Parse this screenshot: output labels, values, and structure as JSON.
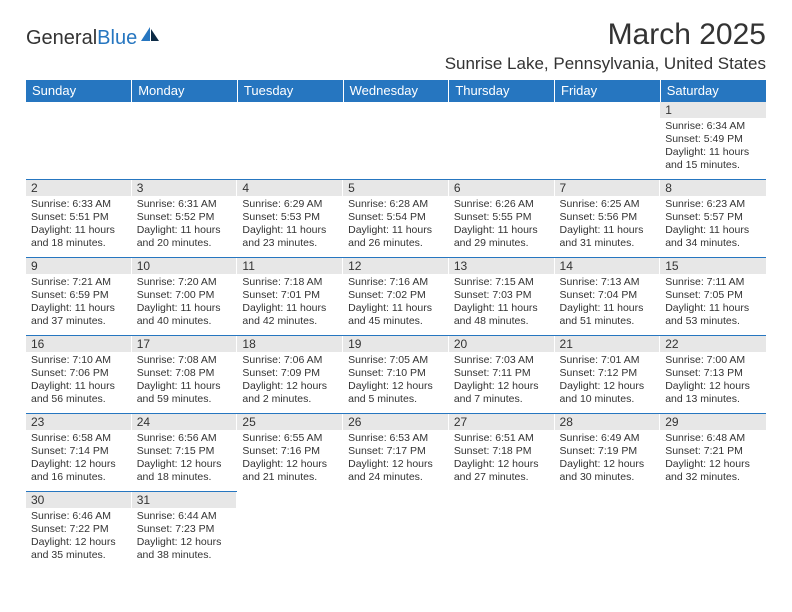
{
  "logo": {
    "text1": "General",
    "text2": "Blue"
  },
  "title": "March 2025",
  "location": "Sunrise Lake, Pennsylvania, United States",
  "header_bg": "#2676c0",
  "header_text_color": "#ffffff",
  "daynum_bg": "#e7e7e7",
  "border_color": "#2676c0",
  "text_color": "#333333",
  "logo_accent": "#2676c0",
  "days": [
    "Sunday",
    "Monday",
    "Tuesday",
    "Wednesday",
    "Thursday",
    "Friday",
    "Saturday"
  ],
  "weeks": [
    [
      null,
      null,
      null,
      null,
      null,
      null,
      {
        "n": "1",
        "sr": "6:34 AM",
        "ss": "5:49 PM",
        "dl": "11 hours and 15 minutes."
      }
    ],
    [
      {
        "n": "2",
        "sr": "6:33 AM",
        "ss": "5:51 PM",
        "dl": "11 hours and 18 minutes."
      },
      {
        "n": "3",
        "sr": "6:31 AM",
        "ss": "5:52 PM",
        "dl": "11 hours and 20 minutes."
      },
      {
        "n": "4",
        "sr": "6:29 AM",
        "ss": "5:53 PM",
        "dl": "11 hours and 23 minutes."
      },
      {
        "n": "5",
        "sr": "6:28 AM",
        "ss": "5:54 PM",
        "dl": "11 hours and 26 minutes."
      },
      {
        "n": "6",
        "sr": "6:26 AM",
        "ss": "5:55 PM",
        "dl": "11 hours and 29 minutes."
      },
      {
        "n": "7",
        "sr": "6:25 AM",
        "ss": "5:56 PM",
        "dl": "11 hours and 31 minutes."
      },
      {
        "n": "8",
        "sr": "6:23 AM",
        "ss": "5:57 PM",
        "dl": "11 hours and 34 minutes."
      }
    ],
    [
      {
        "n": "9",
        "sr": "7:21 AM",
        "ss": "6:59 PM",
        "dl": "11 hours and 37 minutes."
      },
      {
        "n": "10",
        "sr": "7:20 AM",
        "ss": "7:00 PM",
        "dl": "11 hours and 40 minutes."
      },
      {
        "n": "11",
        "sr": "7:18 AM",
        "ss": "7:01 PM",
        "dl": "11 hours and 42 minutes."
      },
      {
        "n": "12",
        "sr": "7:16 AM",
        "ss": "7:02 PM",
        "dl": "11 hours and 45 minutes."
      },
      {
        "n": "13",
        "sr": "7:15 AM",
        "ss": "7:03 PM",
        "dl": "11 hours and 48 minutes."
      },
      {
        "n": "14",
        "sr": "7:13 AM",
        "ss": "7:04 PM",
        "dl": "11 hours and 51 minutes."
      },
      {
        "n": "15",
        "sr": "7:11 AM",
        "ss": "7:05 PM",
        "dl": "11 hours and 53 minutes."
      }
    ],
    [
      {
        "n": "16",
        "sr": "7:10 AM",
        "ss": "7:06 PM",
        "dl": "11 hours and 56 minutes."
      },
      {
        "n": "17",
        "sr": "7:08 AM",
        "ss": "7:08 PM",
        "dl": "11 hours and 59 minutes."
      },
      {
        "n": "18",
        "sr": "7:06 AM",
        "ss": "7:09 PM",
        "dl": "12 hours and 2 minutes."
      },
      {
        "n": "19",
        "sr": "7:05 AM",
        "ss": "7:10 PM",
        "dl": "12 hours and 5 minutes."
      },
      {
        "n": "20",
        "sr": "7:03 AM",
        "ss": "7:11 PM",
        "dl": "12 hours and 7 minutes."
      },
      {
        "n": "21",
        "sr": "7:01 AM",
        "ss": "7:12 PM",
        "dl": "12 hours and 10 minutes."
      },
      {
        "n": "22",
        "sr": "7:00 AM",
        "ss": "7:13 PM",
        "dl": "12 hours and 13 minutes."
      }
    ],
    [
      {
        "n": "23",
        "sr": "6:58 AM",
        "ss": "7:14 PM",
        "dl": "12 hours and 16 minutes."
      },
      {
        "n": "24",
        "sr": "6:56 AM",
        "ss": "7:15 PM",
        "dl": "12 hours and 18 minutes."
      },
      {
        "n": "25",
        "sr": "6:55 AM",
        "ss": "7:16 PM",
        "dl": "12 hours and 21 minutes."
      },
      {
        "n": "26",
        "sr": "6:53 AM",
        "ss": "7:17 PM",
        "dl": "12 hours and 24 minutes."
      },
      {
        "n": "27",
        "sr": "6:51 AM",
        "ss": "7:18 PM",
        "dl": "12 hours and 27 minutes."
      },
      {
        "n": "28",
        "sr": "6:49 AM",
        "ss": "7:19 PM",
        "dl": "12 hours and 30 minutes."
      },
      {
        "n": "29",
        "sr": "6:48 AM",
        "ss": "7:21 PM",
        "dl": "12 hours and 32 minutes."
      }
    ],
    [
      {
        "n": "30",
        "sr": "6:46 AM",
        "ss": "7:22 PM",
        "dl": "12 hours and 35 minutes."
      },
      {
        "n": "31",
        "sr": "6:44 AM",
        "ss": "7:23 PM",
        "dl": "12 hours and 38 minutes."
      },
      null,
      null,
      null,
      null,
      null
    ]
  ],
  "labels": {
    "sunrise": "Sunrise:",
    "sunset": "Sunset:",
    "daylight": "Daylight:"
  }
}
